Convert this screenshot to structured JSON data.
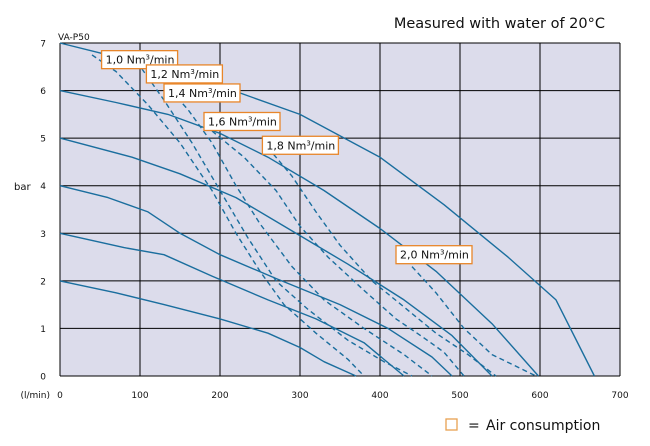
{
  "chart_data": {
    "type": "line",
    "title": "Measured with water of 20°C",
    "model_label": "VA-P50",
    "ylabel": "bar",
    "xlabel": "(l/min)",
    "xlim": [
      0,
      700
    ],
    "ylim": [
      0,
      7
    ],
    "x_ticks": [
      0,
      100,
      200,
      300,
      400,
      500,
      600,
      700
    ],
    "y_ticks": [
      0,
      1,
      2,
      3,
      4,
      5,
      6,
      7
    ],
    "grid": true,
    "legend": {
      "symbol": "□",
      "equals": "=",
      "label": "Air consumption",
      "placement": "bottom-right"
    },
    "colors": {
      "plot_bg": "#dcdceb",
      "grid": "#000000",
      "curve": "#1a6e9e",
      "label_border": "#e8862a"
    },
    "series": [
      {
        "kind": "pressure",
        "values": [
          [
            0,
            7
          ],
          [
            60,
            6.75
          ],
          [
            130,
            6.5
          ],
          [
            200,
            6.1
          ],
          [
            300,
            5.5
          ],
          [
            400,
            4.6
          ],
          [
            480,
            3.6
          ],
          [
            560,
            2.5
          ],
          [
            620,
            1.6
          ],
          [
            668,
            0
          ]
        ]
      },
      {
        "kind": "pressure",
        "values": [
          [
            0,
            6
          ],
          [
            70,
            5.75
          ],
          [
            135,
            5.5
          ],
          [
            200,
            5.1
          ],
          [
            260,
            4.6
          ],
          [
            330,
            3.9
          ],
          [
            400,
            3.1
          ],
          [
            470,
            2.2
          ],
          [
            540,
            1.1
          ],
          [
            598,
            0
          ]
        ]
      },
      {
        "kind": "pressure",
        "values": [
          [
            0,
            5
          ],
          [
            90,
            4.6
          ],
          [
            150,
            4.25
          ],
          [
            220,
            3.75
          ],
          [
            290,
            3.05
          ],
          [
            360,
            2.35
          ],
          [
            430,
            1.6
          ],
          [
            490,
            0.85
          ],
          [
            540,
            0
          ]
        ]
      },
      {
        "kind": "pressure",
        "values": [
          [
            0,
            4
          ],
          [
            60,
            3.75
          ],
          [
            110,
            3.45
          ],
          [
            150,
            3.0
          ],
          [
            200,
            2.55
          ],
          [
            270,
            2.05
          ],
          [
            350,
            1.5
          ],
          [
            410,
            1.0
          ],
          [
            465,
            0.4
          ],
          [
            490,
            0
          ]
        ]
      },
      {
        "kind": "pressure",
        "values": [
          [
            0,
            3
          ],
          [
            80,
            2.7
          ],
          [
            130,
            2.55
          ],
          [
            190,
            2.1
          ],
          [
            260,
            1.6
          ],
          [
            320,
            1.2
          ],
          [
            380,
            0.7
          ],
          [
            430,
            0
          ]
        ]
      },
      {
        "kind": "pressure",
        "values": [
          [
            0,
            2
          ],
          [
            70,
            1.75
          ],
          [
            130,
            1.5
          ],
          [
            200,
            1.2
          ],
          [
            260,
            0.9
          ],
          [
            300,
            0.6
          ],
          [
            330,
            0.3
          ],
          [
            370,
            0
          ]
        ]
      },
      {
        "kind": "air",
        "name": "1,0 Nm³/min",
        "values": [
          [
            40,
            6.75
          ],
          [
            70,
            6.4
          ],
          [
            110,
            5.7
          ],
          [
            150,
            4.9
          ],
          [
            190,
            3.9
          ],
          [
            220,
            3.0
          ],
          [
            250,
            2.2
          ],
          [
            280,
            1.5
          ],
          [
            320,
            0.9
          ],
          [
            360,
            0.35
          ],
          [
            380,
            0
          ]
        ]
      },
      {
        "kind": "air",
        "name": "1,2 Nm³/min",
        "values": [
          [
            90,
            6.75
          ],
          [
            130,
            5.8
          ],
          [
            165,
            4.9
          ],
          [
            200,
            3.9
          ],
          [
            235,
            2.9
          ],
          [
            270,
            2.0
          ],
          [
            310,
            1.4
          ],
          [
            360,
            0.75
          ],
          [
            405,
            0.3
          ],
          [
            440,
            0
          ]
        ]
      },
      {
        "kind": "air",
        "name": "1,4 Nm³/min",
        "values": [
          [
            125,
            6.25
          ],
          [
            160,
            5.6
          ],
          [
            190,
            4.9
          ],
          [
            220,
            4.0
          ],
          [
            250,
            3.2
          ],
          [
            290,
            2.3
          ],
          [
            330,
            1.6
          ],
          [
            380,
            1.0
          ],
          [
            430,
            0.45
          ],
          [
            465,
            0
          ]
        ]
      },
      {
        "kind": "air",
        "name": "1,6 Nm³/min",
        "values": [
          [
            190,
            5.15
          ],
          [
            230,
            4.6
          ],
          [
            270,
            3.9
          ],
          [
            300,
            3.15
          ],
          [
            335,
            2.5
          ],
          [
            380,
            1.8
          ],
          [
            420,
            1.2
          ],
          [
            455,
            0.8
          ],
          [
            480,
            0.5
          ],
          [
            505,
            0
          ]
        ]
      },
      {
        "kind": "air",
        "name": "1,8 Nm³/min",
        "values": [
          [
            260,
            4.8
          ],
          [
            290,
            4.2
          ],
          [
            320,
            3.45
          ],
          [
            350,
            2.75
          ],
          [
            390,
            2.0
          ],
          [
            430,
            1.45
          ],
          [
            470,
            0.9
          ],
          [
            510,
            0.45
          ],
          [
            545,
            0
          ]
        ]
      },
      {
        "kind": "air",
        "name": "2,0 Nm³/min",
        "values": [
          [
            440,
            2.3
          ],
          [
            470,
            1.75
          ],
          [
            505,
            1.0
          ],
          [
            540,
            0.45
          ],
          [
            595,
            0
          ]
        ]
      }
    ],
    "air_labels": [
      {
        "text": "1,0 Nm",
        "sup": "3",
        "rest": "/min",
        "x": 52,
        "y": 6.65
      },
      {
        "text": "1,2 Nm",
        "sup": "3",
        "rest": "/min",
        "x": 108,
        "y": 6.35
      },
      {
        "text": "1,4 Nm",
        "sup": "3",
        "rest": "/min",
        "x": 130,
        "y": 5.95
      },
      {
        "text": "1,6 Nm",
        "sup": "3",
        "rest": "/min",
        "x": 180,
        "y": 5.35
      },
      {
        "text": "1,8 Nm",
        "sup": "3",
        "rest": "/min",
        "x": 253,
        "y": 4.85
      },
      {
        "text": "2,0 Nm",
        "sup": "3",
        "rest": "/min",
        "x": 420,
        "y": 2.55
      }
    ]
  }
}
